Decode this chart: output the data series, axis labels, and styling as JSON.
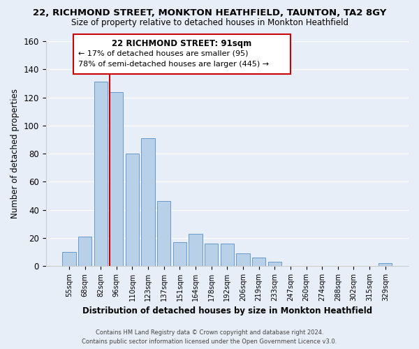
{
  "title": "22, RICHMOND STREET, MONKTON HEATHFIELD, TAUNTON, TA2 8GY",
  "subtitle": "Size of property relative to detached houses in Monkton Heathfield",
  "xlabel": "Distribution of detached houses by size in Monkton Heathfield",
  "ylabel": "Number of detached properties",
  "bar_labels": [
    "55sqm",
    "68sqm",
    "82sqm",
    "96sqm",
    "110sqm",
    "123sqm",
    "137sqm",
    "151sqm",
    "164sqm",
    "178sqm",
    "192sqm",
    "206sqm",
    "219sqm",
    "233sqm",
    "247sqm",
    "260sqm",
    "274sqm",
    "288sqm",
    "302sqm",
    "315sqm",
    "329sqm"
  ],
  "bar_values": [
    10,
    21,
    131,
    124,
    80,
    91,
    46,
    17,
    23,
    16,
    16,
    9,
    6,
    3,
    0,
    0,
    0,
    0,
    0,
    0,
    2
  ],
  "bar_color": "#b8d0e8",
  "bar_edge_color": "#6699cc",
  "reference_line_color": "#cc0000",
  "ylim": [
    0,
    160
  ],
  "yticks": [
    0,
    20,
    40,
    60,
    80,
    100,
    120,
    140,
    160
  ],
  "annotation_title": "22 RICHMOND STREET: 91sqm",
  "annotation_line1": "← 17% of detached houses are smaller (95)",
  "annotation_line2": "78% of semi-detached houses are larger (445) →",
  "annotation_box_color": "#ffffff",
  "annotation_box_edge": "#cc0000",
  "footer_line1": "Contains HM Land Registry data © Crown copyright and database right 2024.",
  "footer_line2": "Contains public sector information licensed under the Open Government Licence v3.0.",
  "bg_color": "#e8eef8",
  "plot_bg_color": "#e8eef8",
  "grid_color": "#ffffff",
  "title_fontsize": 9.5,
  "subtitle_fontsize": 8.5
}
